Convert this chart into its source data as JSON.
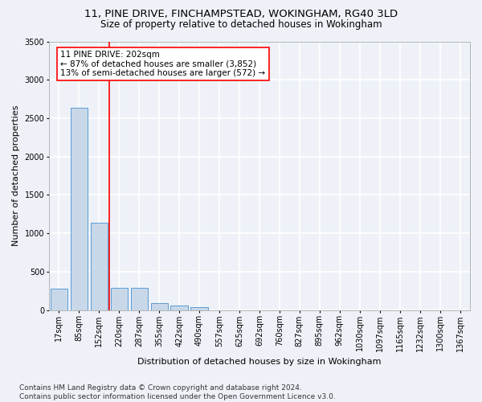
{
  "title_line1": "11, PINE DRIVE, FINCHAMPSTEAD, WOKINGHAM, RG40 3LD",
  "title_line2": "Size of property relative to detached houses in Wokingham",
  "xlabel": "Distribution of detached houses by size in Wokingham",
  "ylabel": "Number of detached properties",
  "bar_color": "#c8d8e8",
  "bar_edge_color": "#5b9bd5",
  "categories": [
    "17sqm",
    "85sqm",
    "152sqm",
    "220sqm",
    "287sqm",
    "355sqm",
    "422sqm",
    "490sqm",
    "557sqm",
    "625sqm",
    "692sqm",
    "760sqm",
    "827sqm",
    "895sqm",
    "962sqm",
    "1030sqm",
    "1097sqm",
    "1165sqm",
    "1232sqm",
    "1300sqm",
    "1367sqm"
  ],
  "values": [
    280,
    2640,
    1140,
    290,
    290,
    95,
    55,
    40,
    0,
    0,
    0,
    0,
    0,
    0,
    0,
    0,
    0,
    0,
    0,
    0,
    0
  ],
  "red_line_x": 2.5,
  "annotation_text": "11 PINE DRIVE: 202sqm\n← 87% of detached houses are smaller (3,852)\n13% of semi-detached houses are larger (572) →",
  "ylim": [
    0,
    3500
  ],
  "yticks": [
    0,
    500,
    1000,
    1500,
    2000,
    2500,
    3000,
    3500
  ],
  "footnote": "Contains HM Land Registry data © Crown copyright and database right 2024.\nContains public sector information licensed under the Open Government Licence v3.0.",
  "background_color": "#eef2f8",
  "grid_color": "#ffffff",
  "title_fontsize": 9.5,
  "subtitle_fontsize": 8.5,
  "axis_label_fontsize": 8,
  "tick_fontsize": 7,
  "footnote_fontsize": 6.5
}
